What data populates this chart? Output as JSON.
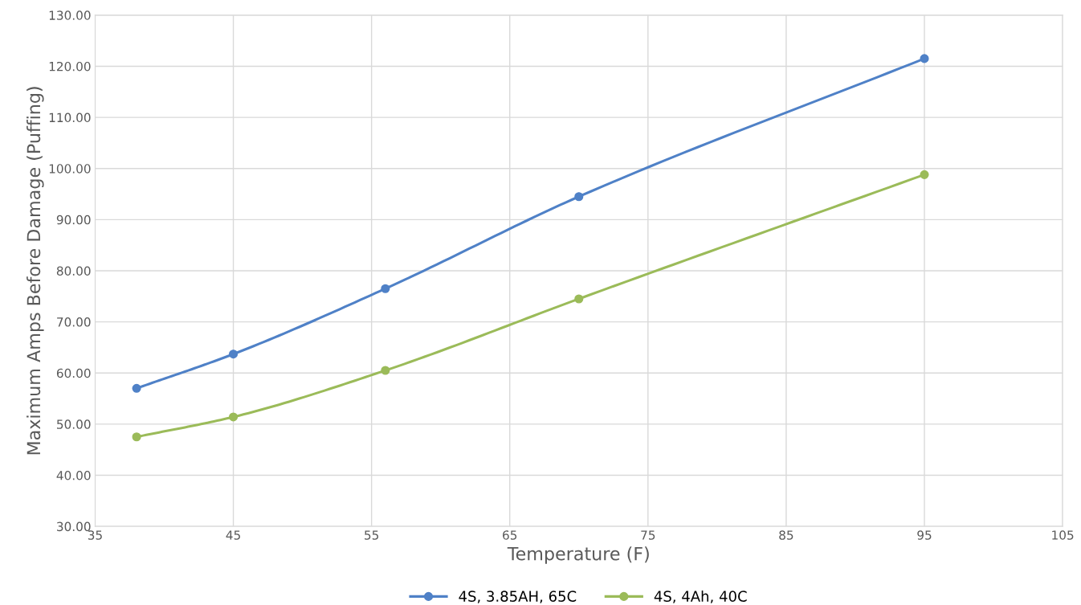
{
  "chart_data": {
    "type": "line",
    "xlabel": "Temperature (F)",
    "ylabel": "Maximum Amps Before Damage (Puffing)",
    "x": [
      38,
      45,
      56,
      70,
      95
    ],
    "series": [
      {
        "name": "4S, 3.85AH, 65C",
        "color": "#4f81c7",
        "values": [
          57.0,
          63.7,
          76.5,
          94.5,
          121.5
        ]
      },
      {
        "name": "4S, 4Ah, 40C",
        "color": "#9bbb59",
        "values": [
          47.5,
          51.4,
          60.5,
          74.5,
          98.8
        ]
      }
    ],
    "xlim": [
      35,
      105
    ],
    "xticks": [
      35,
      45,
      55,
      65,
      75,
      85,
      95,
      105
    ],
    "ylim": [
      30,
      130
    ],
    "yticks": [
      {
        "value": 30,
        "label": "30.00"
      },
      {
        "value": 40,
        "label": "40.00"
      },
      {
        "value": 50,
        "label": "50.00"
      },
      {
        "value": 60,
        "label": "60.00"
      },
      {
        "value": 70,
        "label": "70.00"
      },
      {
        "value": 80,
        "label": "80.00"
      },
      {
        "value": 90,
        "label": "90.00"
      },
      {
        "value": 100,
        "label": "100.00"
      },
      {
        "value": 110,
        "label": "110.00"
      },
      {
        "value": 120,
        "label": "120.00"
      },
      {
        "value": 130,
        "label": "130.00"
      }
    ],
    "grid": true,
    "legend": "bottom",
    "marker": "circle",
    "line_style": "solid"
  }
}
